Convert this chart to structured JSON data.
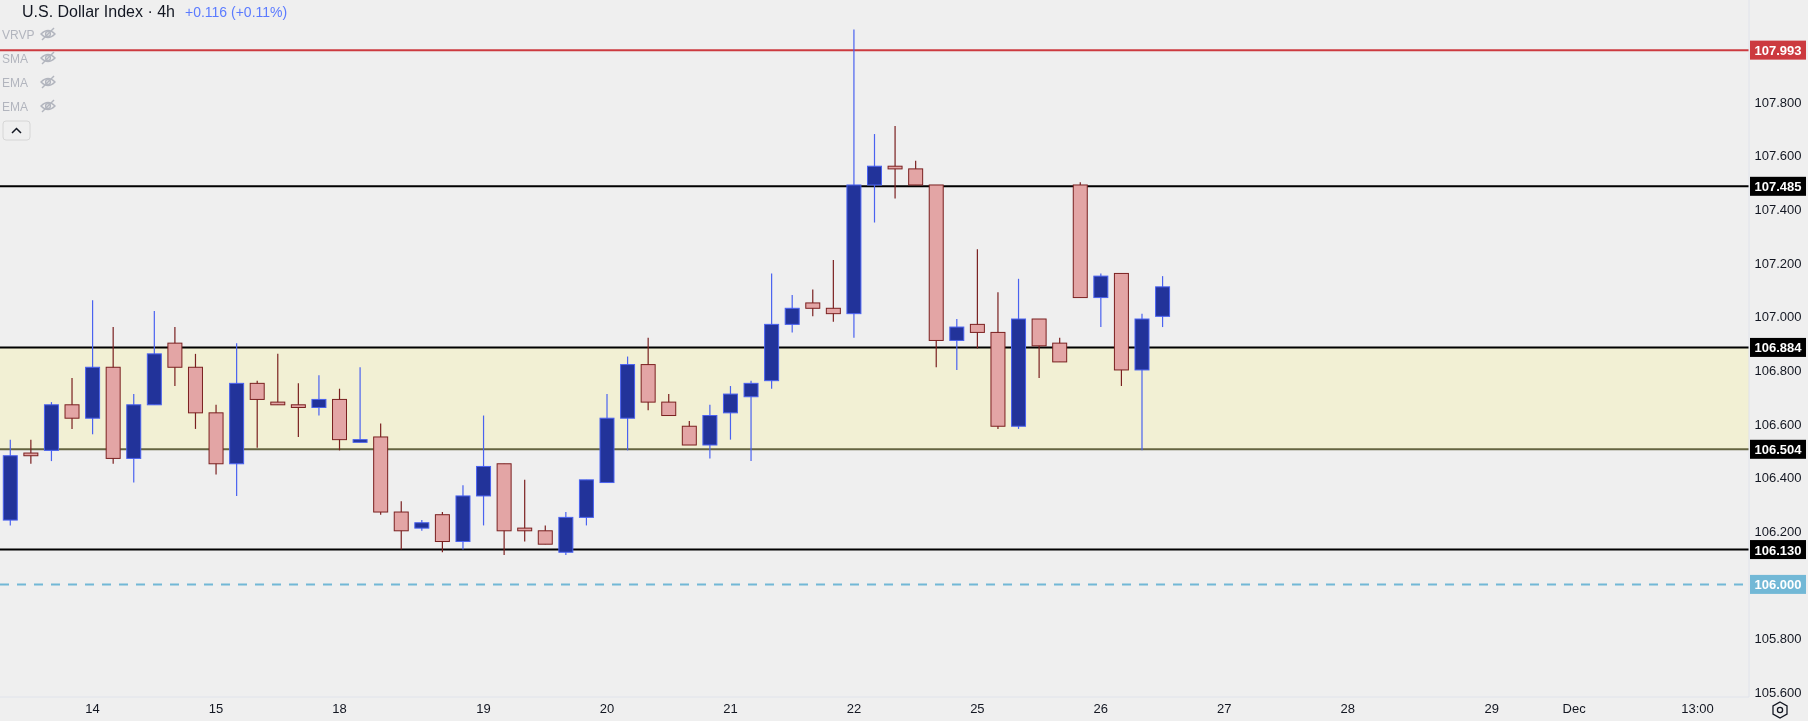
{
  "chart_data": {
    "type": "candlestick",
    "title": "U.S. Dollar Index · 4h",
    "subtitle": "+0.116 (+0.11%)",
    "annotations": [
      "VRVP",
      "SMA",
      "EMA",
      "EMA"
    ],
    "categories": [
      null,
      null,
      null,
      null,
      "14",
      null,
      null,
      null,
      null,
      null,
      "15",
      null,
      null,
      null,
      null,
      null,
      "18",
      null,
      null,
      null,
      null,
      null,
      null,
      "19",
      null,
      null,
      null,
      null,
      null,
      "20",
      null,
      null,
      null,
      null,
      null,
      "21",
      null,
      null,
      null,
      null,
      null,
      "22",
      null,
      null,
      null,
      null,
      null,
      "25",
      null,
      null,
      null,
      null,
      null,
      "26",
      null,
      null,
      null,
      null,
      null,
      "27",
      null,
      null,
      null,
      null,
      null,
      "28",
      null,
      null,
      null,
      null,
      null,
      null,
      "29",
      null,
      null,
      null,
      "Dec",
      null,
      null,
      null,
      null,
      null,
      "13:00",
      null,
      null
    ],
    "ohlc": [
      [
        106.24,
        106.54,
        106.22,
        106.48
      ],
      [
        106.49,
        106.54,
        106.45,
        106.48
      ],
      [
        106.5,
        106.68,
        106.46,
        106.67
      ],
      [
        106.67,
        106.77,
        106.58,
        106.62
      ],
      [
        106.62,
        107.06,
        106.56,
        106.81
      ],
      [
        106.81,
        106.96,
        106.45,
        106.47
      ],
      [
        106.47,
        106.71,
        106.38,
        106.67
      ],
      [
        106.67,
        107.02,
        106.67,
        106.86
      ],
      [
        106.9,
        106.96,
        106.74,
        106.81
      ],
      [
        106.81,
        106.86,
        106.58,
        106.64
      ],
      [
        106.64,
        106.67,
        106.41,
        106.45
      ],
      [
        106.45,
        106.9,
        106.33,
        106.75
      ],
      [
        106.75,
        106.76,
        106.51,
        106.69
      ],
      [
        106.68,
        106.86,
        106.67,
        106.67
      ],
      [
        106.67,
        106.75,
        106.55,
        106.66
      ],
      [
        106.66,
        106.78,
        106.63,
        106.69
      ],
      [
        106.69,
        106.73,
        106.5,
        106.54
      ],
      [
        106.53,
        106.81,
        106.53,
        106.54
      ],
      [
        106.55,
        106.6,
        106.26,
        106.27
      ],
      [
        106.27,
        106.31,
        106.13,
        106.2
      ],
      [
        106.21,
        106.24,
        106.2,
        106.23
      ],
      [
        106.26,
        106.27,
        106.12,
        106.16
      ],
      [
        106.16,
        106.37,
        106.13,
        106.33
      ],
      [
        106.33,
        106.63,
        106.22,
        106.44
      ],
      [
        106.45,
        106.45,
        106.11,
        106.2
      ],
      [
        106.21,
        106.39,
        106.16,
        106.2
      ],
      [
        106.2,
        106.22,
        106.15,
        106.15
      ],
      [
        106.12,
        106.27,
        106.11,
        106.25
      ],
      [
        106.25,
        106.39,
        106.22,
        106.39
      ],
      [
        106.38,
        106.71,
        106.38,
        106.62
      ],
      [
        106.62,
        106.85,
        106.5,
        106.82
      ],
      [
        106.82,
        106.92,
        106.65,
        106.68
      ],
      [
        106.68,
        106.71,
        106.63,
        106.63
      ],
      [
        106.59,
        106.61,
        106.52,
        106.52
      ],
      [
        106.52,
        106.67,
        106.47,
        106.63
      ],
      [
        106.64,
        106.74,
        106.54,
        106.71
      ],
      [
        106.7,
        106.76,
        106.46,
        106.75
      ],
      [
        106.76,
        107.16,
        106.73,
        106.97
      ],
      [
        106.97,
        107.08,
        106.94,
        107.03
      ],
      [
        107.05,
        107.1,
        107.0,
        107.03
      ],
      [
        107.03,
        107.21,
        106.98,
        107.01
      ],
      [
        107.01,
        108.07,
        106.92,
        107.49
      ],
      [
        107.49,
        107.68,
        107.35,
        107.56
      ],
      [
        107.56,
        107.71,
        107.44,
        107.55
      ],
      [
        107.55,
        107.58,
        107.49,
        107.49
      ],
      [
        107.49,
        107.49,
        106.81,
        106.91
      ],
      [
        106.91,
        106.99,
        106.8,
        106.96
      ],
      [
        106.97,
        107.25,
        106.88,
        106.94
      ],
      [
        106.94,
        107.09,
        106.58,
        106.59
      ],
      [
        106.59,
        107.14,
        106.58,
        106.99
      ],
      [
        106.99,
        106.99,
        106.77,
        106.89
      ],
      [
        106.9,
        106.92,
        106.83,
        106.83
      ],
      [
        107.49,
        107.5,
        107.07,
        107.07
      ],
      [
        107.07,
        107.16,
        106.96,
        107.15
      ],
      [
        107.16,
        107.16,
        106.74,
        106.8
      ],
      [
        106.8,
        107.01,
        106.5,
        106.99
      ],
      [
        107.0,
        107.15,
        106.96,
        107.11
      ],
      null,
      null,
      null,
      null,
      null,
      null,
      null,
      null,
      null,
      null,
      null,
      null,
      null,
      null,
      null,
      null,
      null,
      null,
      null,
      null,
      null,
      null,
      null,
      null,
      null,
      null,
      null,
      null
    ],
    "ylim": [
      105.58,
      108.18
    ],
    "yticks": [
      {
        "value": 105.6,
        "label": "105.600"
      },
      {
        "value": 105.8,
        "label": "105.800"
      },
      {
        "value": 106.2,
        "label": "106.200"
      },
      {
        "value": 106.4,
        "label": "106.400"
      },
      {
        "value": 106.6,
        "label": "106.600"
      },
      {
        "value": 106.8,
        "label": "106.800"
      },
      {
        "value": 107.0,
        "label": "107.000"
      },
      {
        "value": 107.2,
        "label": "107.200"
      },
      {
        "value": 107.4,
        "label": "107.400"
      },
      {
        "value": 107.6,
        "label": "107.600"
      },
      {
        "value": 107.8,
        "label": "107.800"
      }
    ],
    "ref_lines": [
      {
        "axis": "y",
        "value": 107.993,
        "label": "107.993",
        "color": "#cc3a3f"
      },
      {
        "axis": "y",
        "value": 107.485,
        "label": "107.485",
        "color": "#000000"
      },
      {
        "axis": "y",
        "value": 106.884,
        "label": "106.884",
        "color": "#000000"
      },
      {
        "axis": "y",
        "value": 106.504,
        "label": "106.504",
        "color": "#646441"
      },
      {
        "axis": "y",
        "value": 106.13,
        "label": "106.130",
        "color": "#000000"
      },
      {
        "axis": "y",
        "value": 106.0,
        "label": "106.000",
        "color": "#72b8d6",
        "line_style": "dashed"
      }
    ],
    "bands": [
      {
        "axis": "y",
        "from": 106.504,
        "to": 106.884,
        "color": "#f2f0d4"
      }
    ],
    "grid": false
  }
}
